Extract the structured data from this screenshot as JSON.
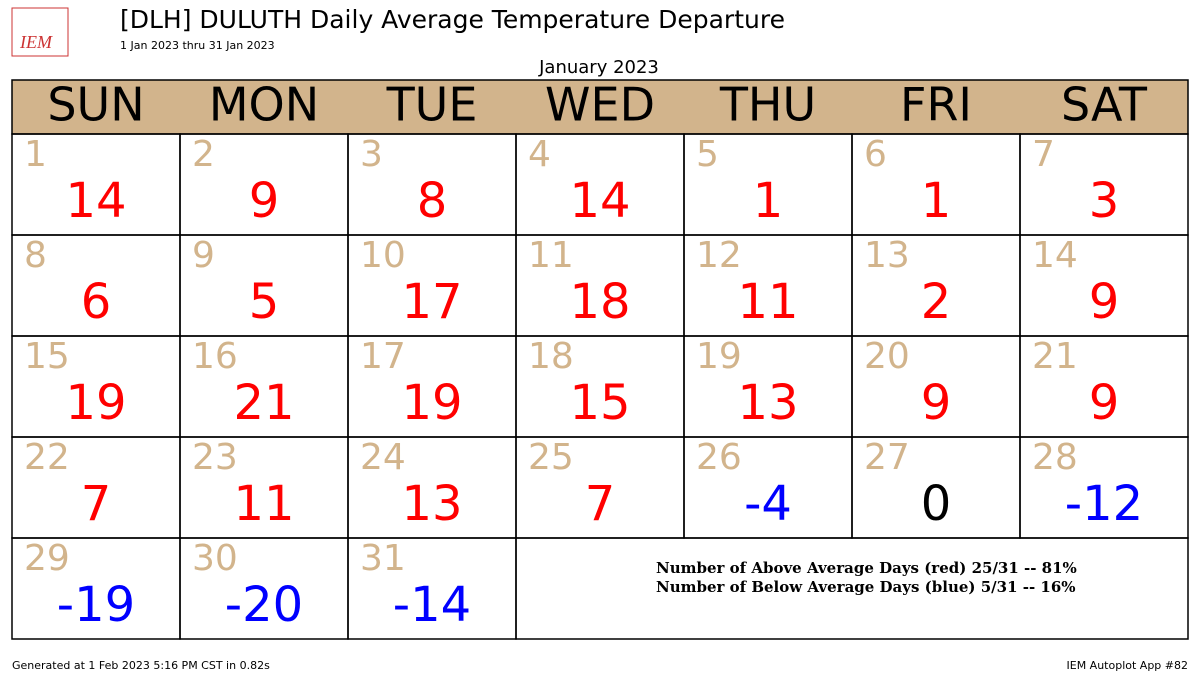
{
  "chart_data": {
    "type": "calendar",
    "title": "[DLH] DULUTH Daily Average Temperature Departure",
    "subtitle": "1 Jan 2023 thru 31 Jan 2023",
    "month_title": "January 2023",
    "weekdays": [
      "SUN",
      "MON",
      "TUE",
      "WED",
      "THU",
      "FRI",
      "SAT"
    ],
    "days": [
      1,
      2,
      3,
      4,
      5,
      6,
      7,
      8,
      9,
      10,
      11,
      12,
      13,
      14,
      15,
      16,
      17,
      18,
      19,
      20,
      21,
      22,
      23,
      24,
      25,
      26,
      27,
      28,
      29,
      30,
      31
    ],
    "values": [
      14,
      9,
      8,
      14,
      1,
      1,
      3,
      6,
      5,
      17,
      18,
      11,
      2,
      9,
      19,
      21,
      19,
      15,
      13,
      9,
      9,
      7,
      11,
      13,
      7,
      -4,
      0,
      -12,
      -19,
      -20,
      -14
    ],
    "colors": {
      "above": "#ff0000",
      "below": "#0000ff",
      "zero": "#000000",
      "header": "#d2b48c",
      "day_number": "#d2b48c"
    },
    "summary": [
      "Number of Above Average Days (red) 25/31 -- 81%",
      "Number of Below Average Days (blue) 5/31 -- 16%"
    ],
    "logo": "IEM",
    "footer_left": "Generated at 1 Feb 2023 5:16 PM CST in 0.82s",
    "footer_right": "IEM Autoplot App #82"
  }
}
